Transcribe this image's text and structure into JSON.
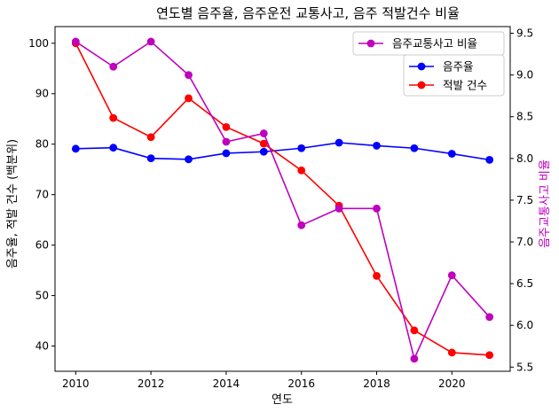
{
  "chart_data": {
    "type": "line",
    "title": "연도별 음주율, 음주운전 교통사고, 음주 적발건수 비율",
    "xlabel": "연도",
    "ylabel": "음주율, 적발 건수 (백분위)",
    "ylabel_right": "음주교통사고 비율",
    "x": [
      2010,
      2011,
      2012,
      2013,
      2014,
      2015,
      2016,
      2017,
      2018,
      2019,
      2020,
      2021
    ],
    "xlim": [
      2009.45,
      2021.55
    ],
    "ylim": [
      35,
      103.3
    ],
    "ylim_right": [
      5.45,
      9.58
    ],
    "xticks": [
      2010,
      2012,
      2014,
      2016,
      2018,
      2020
    ],
    "yticks": [
      40,
      50,
      60,
      70,
      80,
      90,
      100
    ],
    "yticks_right": [
      5.5,
      6.0,
      6.5,
      7.0,
      7.5,
      8.0,
      8.5,
      9.0,
      9.5
    ],
    "grid": false,
    "series": [
      {
        "name": "음주율",
        "axis": "left",
        "color": "#0000ff",
        "values": [
          79.1,
          79.3,
          77.2,
          77.0,
          78.2,
          78.5,
          79.2,
          80.3,
          79.7,
          79.2,
          78.1,
          76.9
        ]
      },
      {
        "name": "적발 건수",
        "axis": "left",
        "color": "#ff0000",
        "values": [
          100.0,
          85.2,
          81.4,
          89.1,
          83.4,
          80.1,
          74.8,
          67.8,
          53.9,
          43.1,
          38.7,
          38.2
        ]
      },
      {
        "name": "음주교통사고 비율",
        "axis": "right",
        "color": "#bf00bf",
        "values": [
          9.4,
          9.1,
          9.4,
          9.0,
          8.2,
          8.3,
          7.2,
          7.4,
          7.4,
          5.6,
          6.6,
          6.1
        ]
      }
    ],
    "legends": [
      {
        "placement": "top-right",
        "entries": [
          "음주교통사고 비율"
        ]
      },
      {
        "placement": "upper-right",
        "entries": [
          "음주율",
          "적발 건수"
        ]
      }
    ]
  }
}
